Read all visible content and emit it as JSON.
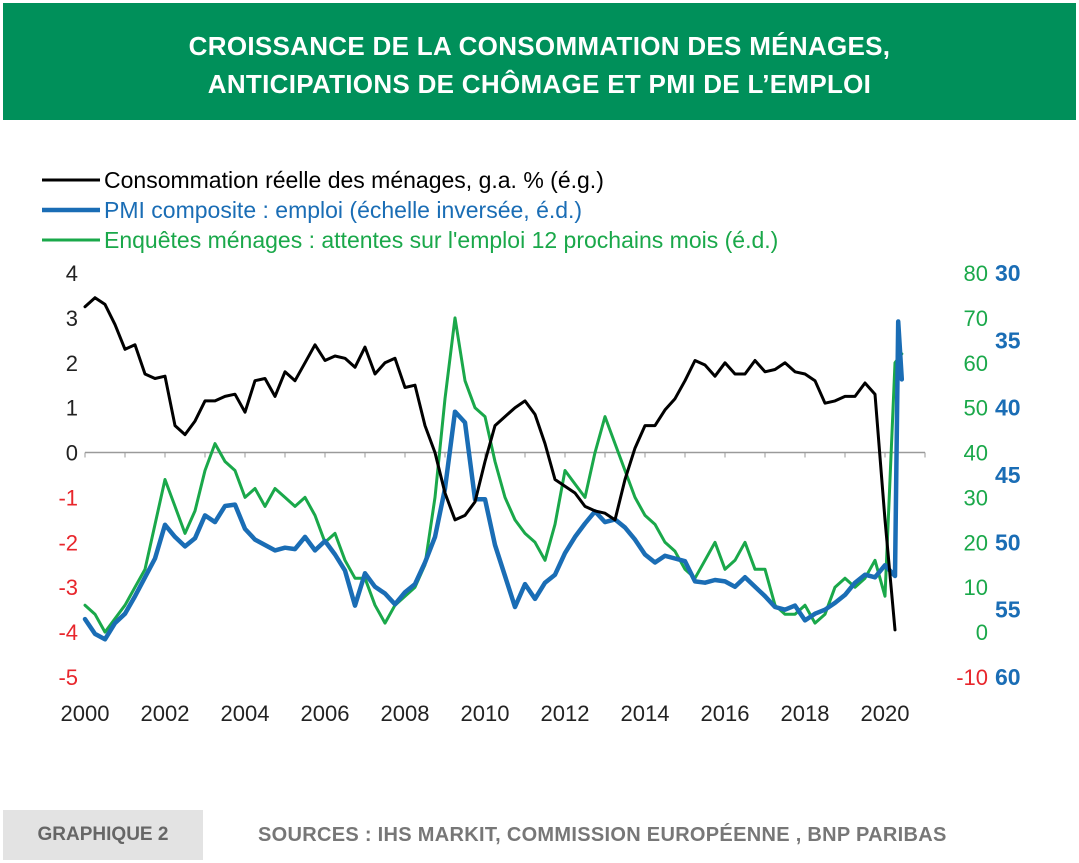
{
  "banner": {
    "title_line1": "CROISSANCE DE LA CONSOMMATION DES MÉNAGES,",
    "title_line2": "ANTICIPATIONS DE CHÔMAGE ET PMI DE L’EMPLOI"
  },
  "footer": {
    "tag": "GRAPHIQUE 2",
    "sources": "SOURCES : IHS MARKIT, COMMISSION EUROPÉENNE , BNP PARIBAS"
  },
  "colors": {
    "banner": "#00905a",
    "consumption": "#000000",
    "pmi": "#1a6db5",
    "survey": "#1aa84a",
    "negative_ticks": "#e8262c"
  },
  "chart_data": {
    "type": "line",
    "legend_position": "top-left",
    "grid": false,
    "x_ticks": [
      "2000",
      "2002",
      "2004",
      "2006",
      "2008",
      "2010",
      "2012",
      "2014",
      "2016",
      "2018",
      "2020"
    ],
    "xlim": [
      2000,
      2021
    ],
    "left_axis": {
      "ylim": [
        -5,
        4
      ],
      "ticks": [
        "4",
        "3",
        "2",
        "1",
        "0",
        "-1",
        "-2",
        "-3",
        "-4",
        "-5"
      ]
    },
    "right_axis_survey": {
      "ylim": [
        -10,
        80
      ],
      "ticks": [
        "80",
        "70",
        "60",
        "50",
        "40",
        "30",
        "20",
        "10",
        "0",
        "-10"
      ]
    },
    "right_axis_pmi": {
      "ylim": [
        30,
        60
      ],
      "inverted": true,
      "ticks": [
        "30",
        "35",
        "40",
        "45",
        "50",
        "55",
        "60"
      ]
    },
    "series": [
      {
        "name": "Consommation réelle des ménages, g.a. % (é.g.)",
        "axis": "left",
        "color": "#000000",
        "points": [
          [
            2000.0,
            3.25
          ],
          [
            2000.25,
            3.45
          ],
          [
            2000.5,
            3.3
          ],
          [
            2000.75,
            2.85
          ],
          [
            2001.0,
            2.3
          ],
          [
            2001.25,
            2.4
          ],
          [
            2001.5,
            1.75
          ],
          [
            2001.75,
            1.65
          ],
          [
            2002.0,
            1.7
          ],
          [
            2002.25,
            0.6
          ],
          [
            2002.5,
            0.4
          ],
          [
            2002.75,
            0.7
          ],
          [
            2003.0,
            1.15
          ],
          [
            2003.25,
            1.15
          ],
          [
            2003.5,
            1.25
          ],
          [
            2003.75,
            1.3
          ],
          [
            2004.0,
            0.9
          ],
          [
            2004.25,
            1.6
          ],
          [
            2004.5,
            1.65
          ],
          [
            2004.75,
            1.25
          ],
          [
            2005.0,
            1.8
          ],
          [
            2005.25,
            1.6
          ],
          [
            2005.5,
            2.0
          ],
          [
            2005.75,
            2.4
          ],
          [
            2006.0,
            2.05
          ],
          [
            2006.25,
            2.15
          ],
          [
            2006.5,
            2.1
          ],
          [
            2006.75,
            1.9
          ],
          [
            2007.0,
            2.35
          ],
          [
            2007.25,
            1.75
          ],
          [
            2007.5,
            2.0
          ],
          [
            2007.75,
            2.1
          ],
          [
            2008.0,
            1.45
          ],
          [
            2008.25,
            1.5
          ],
          [
            2008.5,
            0.6
          ],
          [
            2008.75,
            0.0
          ],
          [
            2009.0,
            -0.9
          ],
          [
            2009.25,
            -1.5
          ],
          [
            2009.5,
            -1.4
          ],
          [
            2009.75,
            -1.1
          ],
          [
            2010.0,
            -0.2
          ],
          [
            2010.25,
            0.6
          ],
          [
            2010.5,
            0.8
          ],
          [
            2010.75,
            1.0
          ],
          [
            2011.0,
            1.15
          ],
          [
            2011.25,
            0.85
          ],
          [
            2011.5,
            0.2
          ],
          [
            2011.75,
            -0.6
          ],
          [
            2012.0,
            -0.75
          ],
          [
            2012.25,
            -0.9
          ],
          [
            2012.5,
            -1.2
          ],
          [
            2012.75,
            -1.3
          ],
          [
            2013.0,
            -1.35
          ],
          [
            2013.25,
            -1.5
          ],
          [
            2013.5,
            -0.6
          ],
          [
            2013.75,
            0.1
          ],
          [
            2014.0,
            0.6
          ],
          [
            2014.25,
            0.6
          ],
          [
            2014.5,
            0.95
          ],
          [
            2014.75,
            1.2
          ],
          [
            2015.0,
            1.6
          ],
          [
            2015.25,
            2.05
          ],
          [
            2015.5,
            1.95
          ],
          [
            2015.75,
            1.7
          ],
          [
            2016.0,
            2.0
          ],
          [
            2016.25,
            1.75
          ],
          [
            2016.5,
            1.75
          ],
          [
            2016.75,
            2.05
          ],
          [
            2017.0,
            1.8
          ],
          [
            2017.25,
            1.85
          ],
          [
            2017.5,
            2.0
          ],
          [
            2017.75,
            1.8
          ],
          [
            2018.0,
            1.75
          ],
          [
            2018.25,
            1.6
          ],
          [
            2018.5,
            1.1
          ],
          [
            2018.75,
            1.15
          ],
          [
            2019.0,
            1.25
          ],
          [
            2019.25,
            1.25
          ],
          [
            2019.5,
            1.55
          ],
          [
            2019.75,
            1.3
          ],
          [
            2020.0,
            -1.5
          ],
          [
            2020.25,
            -3.95
          ]
        ]
      },
      {
        "name": "PMI composite : emploi (échelle inversée, é.d.)",
        "axis": "pmi",
        "color": "#1a6db5",
        "points": [
          [
            2000.0,
            55.7
          ],
          [
            2000.25,
            56.8
          ],
          [
            2000.5,
            57.2
          ],
          [
            2000.75,
            56.0
          ],
          [
            2001.0,
            55.3
          ],
          [
            2001.25,
            54.0
          ],
          [
            2001.5,
            52.6
          ],
          [
            2001.75,
            51.2
          ],
          [
            2002.0,
            48.7
          ],
          [
            2002.25,
            49.6
          ],
          [
            2002.5,
            50.3
          ],
          [
            2002.75,
            49.7
          ],
          [
            2003.0,
            48.0
          ],
          [
            2003.25,
            48.5
          ],
          [
            2003.5,
            47.3
          ],
          [
            2003.75,
            47.2
          ],
          [
            2004.0,
            49.0
          ],
          [
            2004.25,
            49.8
          ],
          [
            2004.5,
            50.2
          ],
          [
            2004.75,
            50.6
          ],
          [
            2005.0,
            50.4
          ],
          [
            2005.25,
            50.5
          ],
          [
            2005.5,
            49.6
          ],
          [
            2005.75,
            50.6
          ],
          [
            2006.0,
            49.9
          ],
          [
            2006.25,
            50.9
          ],
          [
            2006.5,
            52.1
          ],
          [
            2006.75,
            54.7
          ],
          [
            2007.0,
            52.3
          ],
          [
            2007.25,
            53.3
          ],
          [
            2007.5,
            53.8
          ],
          [
            2007.75,
            54.6
          ],
          [
            2008.0,
            53.7
          ],
          [
            2008.25,
            53.1
          ],
          [
            2008.5,
            51.5
          ],
          [
            2008.75,
            49.6
          ],
          [
            2009.0,
            46.0
          ],
          [
            2009.25,
            40.3
          ],
          [
            2009.5,
            41.1
          ],
          [
            2009.75,
            46.8
          ],
          [
            2010.0,
            46.8
          ],
          [
            2010.25,
            50.2
          ],
          [
            2010.5,
            52.5
          ],
          [
            2010.75,
            54.8
          ],
          [
            2011.0,
            53.1
          ],
          [
            2011.25,
            54.2
          ],
          [
            2011.5,
            53.0
          ],
          [
            2011.75,
            52.4
          ],
          [
            2012.0,
            50.8
          ],
          [
            2012.25,
            49.6
          ],
          [
            2012.5,
            48.6
          ],
          [
            2012.75,
            47.7
          ],
          [
            2013.0,
            48.5
          ],
          [
            2013.25,
            48.3
          ],
          [
            2013.5,
            48.9
          ],
          [
            2013.75,
            49.8
          ],
          [
            2014.0,
            50.9
          ],
          [
            2014.25,
            51.5
          ],
          [
            2014.5,
            51.0
          ],
          [
            2014.75,
            51.2
          ],
          [
            2015.0,
            51.4
          ],
          [
            2015.25,
            52.9
          ],
          [
            2015.5,
            53.0
          ],
          [
            2015.75,
            52.8
          ],
          [
            2016.0,
            52.9
          ],
          [
            2016.25,
            53.3
          ],
          [
            2016.5,
            52.6
          ],
          [
            2016.75,
            53.3
          ],
          [
            2017.0,
            54.0
          ],
          [
            2017.25,
            54.8
          ],
          [
            2017.5,
            55.0
          ],
          [
            2017.75,
            54.7
          ],
          [
            2018.0,
            55.8
          ],
          [
            2018.25,
            55.3
          ],
          [
            2018.5,
            55.0
          ],
          [
            2018.75,
            54.5
          ],
          [
            2019.0,
            53.9
          ],
          [
            2019.25,
            53.0
          ],
          [
            2019.5,
            52.4
          ],
          [
            2019.75,
            52.6
          ],
          [
            2020.0,
            51.7
          ],
          [
            2020.25,
            52.5
          ],
          [
            2020.33,
            33.6
          ],
          [
            2020.42,
            37.9
          ]
        ]
      },
      {
        "name": "Enquêtes ménages : attentes sur l'emploi 12 prochains mois (é.d.)",
        "axis": "survey",
        "color": "#1aa84a",
        "points": [
          [
            2000.0,
            6
          ],
          [
            2000.25,
            4
          ],
          [
            2000.5,
            0
          ],
          [
            2000.75,
            3
          ],
          [
            2001.0,
            6
          ],
          [
            2001.25,
            10
          ],
          [
            2001.5,
            14
          ],
          [
            2001.75,
            24
          ],
          [
            2002.0,
            34
          ],
          [
            2002.25,
            28
          ],
          [
            2002.5,
            22
          ],
          [
            2002.75,
            27
          ],
          [
            2003.0,
            36
          ],
          [
            2003.25,
            42
          ],
          [
            2003.5,
            38
          ],
          [
            2003.75,
            36
          ],
          [
            2004.0,
            30
          ],
          [
            2004.25,
            32
          ],
          [
            2004.5,
            28
          ],
          [
            2004.75,
            32
          ],
          [
            2005.0,
            30
          ],
          [
            2005.25,
            28
          ],
          [
            2005.5,
            30
          ],
          [
            2005.75,
            26
          ],
          [
            2006.0,
            20
          ],
          [
            2006.25,
            22
          ],
          [
            2006.5,
            16
          ],
          [
            2006.75,
            12
          ],
          [
            2007.0,
            12
          ],
          [
            2007.25,
            6
          ],
          [
            2007.5,
            2
          ],
          [
            2007.75,
            6
          ],
          [
            2008.0,
            8
          ],
          [
            2008.25,
            10
          ],
          [
            2008.5,
            15
          ],
          [
            2008.75,
            30
          ],
          [
            2009.0,
            52
          ],
          [
            2009.25,
            70
          ],
          [
            2009.5,
            56
          ],
          [
            2009.75,
            50
          ],
          [
            2010.0,
            48
          ],
          [
            2010.25,
            38
          ],
          [
            2010.5,
            30
          ],
          [
            2010.75,
            25
          ],
          [
            2011.0,
            22
          ],
          [
            2011.25,
            20
          ],
          [
            2011.5,
            16
          ],
          [
            2011.75,
            24
          ],
          [
            2012.0,
            36
          ],
          [
            2012.25,
            33
          ],
          [
            2012.5,
            30
          ],
          [
            2012.75,
            40
          ],
          [
            2013.0,
            48
          ],
          [
            2013.25,
            42
          ],
          [
            2013.5,
            36
          ],
          [
            2013.75,
            30
          ],
          [
            2014.0,
            26
          ],
          [
            2014.25,
            24
          ],
          [
            2014.5,
            20
          ],
          [
            2014.75,
            18
          ],
          [
            2015.0,
            14
          ],
          [
            2015.25,
            12
          ],
          [
            2015.5,
            16
          ],
          [
            2015.75,
            20
          ],
          [
            2016.0,
            14
          ],
          [
            2016.25,
            16
          ],
          [
            2016.5,
            20
          ],
          [
            2016.75,
            14
          ],
          [
            2017.0,
            14
          ],
          [
            2017.25,
            6
          ],
          [
            2017.5,
            4
          ],
          [
            2017.75,
            4
          ],
          [
            2018.0,
            6
          ],
          [
            2018.25,
            2
          ],
          [
            2018.5,
            4
          ],
          [
            2018.75,
            10
          ],
          [
            2019.0,
            12
          ],
          [
            2019.25,
            10
          ],
          [
            2019.5,
            12
          ],
          [
            2019.75,
            16
          ],
          [
            2020.0,
            8
          ],
          [
            2020.25,
            60
          ],
          [
            2020.42,
            62
          ]
        ]
      }
    ]
  }
}
